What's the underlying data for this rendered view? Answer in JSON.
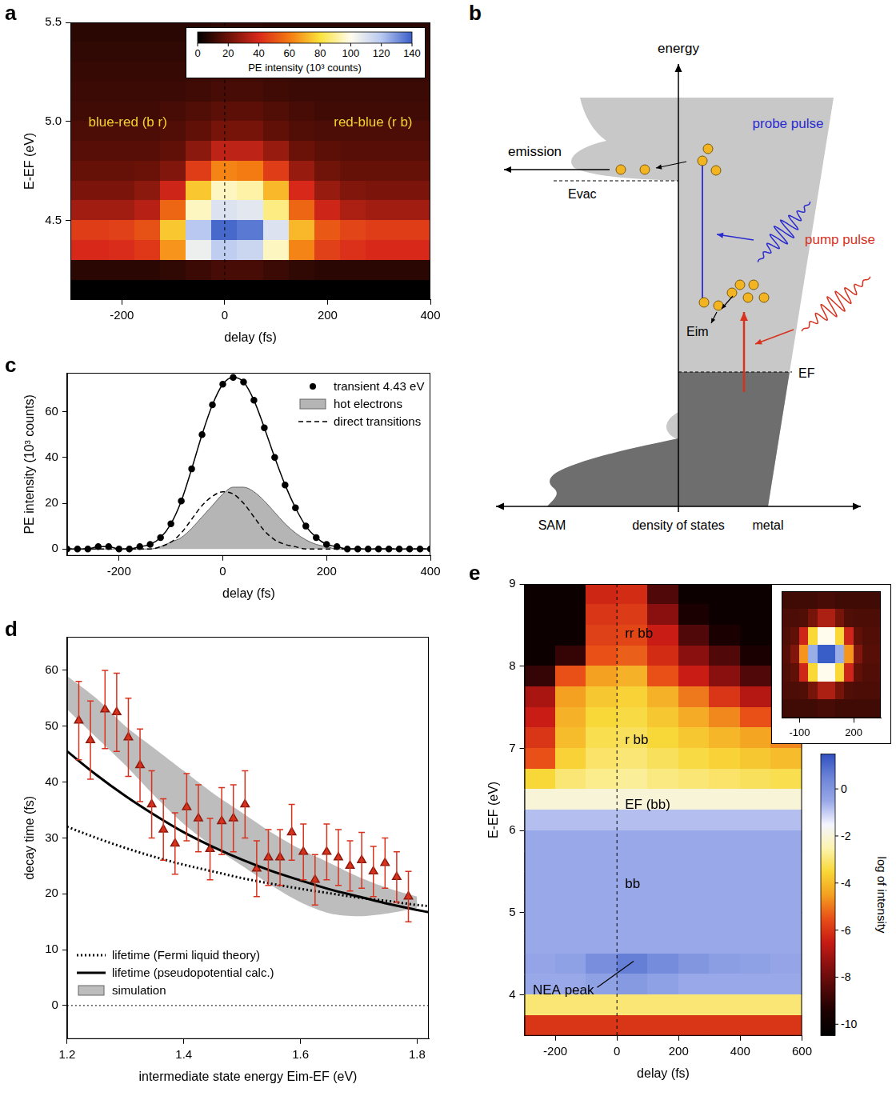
{
  "chart_data": [
    {
      "panel_label": "a",
      "type": "heatmap",
      "annotations": [
        "blue-red (b r)",
        "red-blue (r b)"
      ],
      "x_label": "delay (fs)",
      "y_label": "E-EF (eV)",
      "xlim": [
        -300,
        400
      ],
      "xticks": [
        -200,
        0,
        200,
        400
      ],
      "ylim": [
        4.1,
        5.5
      ],
      "yticks": [
        4.5,
        {
          "value": 5,
          "label": "5.0"
        },
        5.5
      ],
      "grid": false,
      "reference_line_x": 0,
      "x": [
        -300,
        -250,
        -200,
        -150,
        -100,
        -50,
        0,
        50,
        100,
        150,
        200,
        250,
        300,
        350,
        400
      ],
      "y": [
        5.45,
        5.35,
        5.25,
        5.15,
        5.05,
        4.95,
        4.85,
        4.75,
        4.65,
        4.55,
        4.45,
        4.35,
        4.25,
        4.15
      ],
      "z": [
        [
          8,
          8,
          8,
          8,
          8,
          8,
          9,
          9,
          8,
          8,
          8,
          8,
          8,
          8,
          8
        ],
        [
          9,
          9,
          9,
          9,
          9,
          9,
          10,
          10,
          9,
          9,
          9,
          9,
          9,
          9,
          9
        ],
        [
          10,
          10,
          10,
          10,
          10,
          11,
          12,
          12,
          11,
          10,
          10,
          10,
          10,
          10,
          10
        ],
        [
          11,
          11,
          11,
          11,
          11,
          12,
          13,
          13,
          12,
          11,
          11,
          11,
          11,
          11,
          11
        ],
        [
          12,
          12,
          12,
          12,
          13,
          15,
          17,
          17,
          15,
          13,
          12,
          12,
          12,
          12,
          12
        ],
        [
          14,
          14,
          14,
          14,
          15,
          18,
          22,
          22,
          18,
          15,
          14,
          14,
          14,
          14,
          14
        ],
        [
          16,
          16,
          16,
          16,
          18,
          26,
          35,
          35,
          28,
          20,
          17,
          16,
          16,
          16,
          16
        ],
        [
          19,
          19,
          19,
          20,
          24,
          45,
          62,
          60,
          45,
          28,
          21,
          19,
          19,
          19,
          19
        ],
        [
          23,
          23,
          23,
          26,
          38,
          75,
          95,
          92,
          72,
          40,
          28,
          24,
          23,
          23,
          23
        ],
        [
          30,
          30,
          30,
          34,
          55,
          95,
          110,
          108,
          88,
          55,
          38,
          32,
          30,
          30,
          30
        ],
        [
          45,
          45,
          46,
          50,
          75,
          120,
          138,
          135,
          110,
          72,
          52,
          47,
          45,
          45,
          45
        ],
        [
          40,
          40,
          41,
          44,
          65,
          105,
          118,
          115,
          95,
          62,
          46,
          42,
          40,
          40,
          40
        ],
        [
          8,
          8,
          8,
          8,
          9,
          11,
          13,
          13,
          11,
          9,
          8,
          8,
          8,
          8,
          8
        ],
        [
          0,
          0,
          0,
          0,
          0,
          0,
          0,
          0,
          0,
          0,
          0,
          0,
          0,
          0,
          0
        ]
      ],
      "colorbar": {
        "label": "PE intensity (10³ counts)",
        "range": [
          0,
          140
        ],
        "ticks": [
          0,
          20,
          40,
          60,
          80,
          100,
          120,
          140
        ],
        "colors": [
          "#000000",
          "#6b1208",
          "#d8281a",
          "#f47a12",
          "#fbe23a",
          "#fffcee",
          "#b8c8f0",
          "#3a5ec8"
        ]
      }
    },
    {
      "panel_label": "c",
      "type": "line",
      "x_label": "delay (fs)",
      "y_label": "PE intensity (10³ counts)",
      "xlim": [
        -300,
        400
      ],
      "xticks": [
        -200,
        0,
        200,
        400
      ],
      "ylim": [
        -3,
        77
      ],
      "yticks": [
        0,
        20,
        40,
        60
      ],
      "grid": false,
      "legend": "top-right",
      "x": [
        -300,
        -280,
        -260,
        -240,
        -220,
        -200,
        -180,
        -160,
        -140,
        -120,
        -100,
        -80,
        -60,
        -40,
        -20,
        0,
        20,
        40,
        60,
        80,
        100,
        120,
        140,
        160,
        180,
        200,
        220,
        240,
        260,
        280,
        300,
        320,
        340,
        360,
        380,
        400
      ],
      "series": [
        {
          "name": "transient 4.43 eV",
          "color": "#000000",
          "marker": "circle",
          "line_style": "solid",
          "values": [
            0,
            0,
            0,
            1,
            1,
            0,
            0,
            1,
            2,
            5,
            11,
            21,
            35,
            50,
            63,
            72,
            75,
            73,
            65,
            53,
            40,
            28,
            18,
            10,
            5,
            2,
            1,
            0,
            0,
            0,
            0,
            0,
            0,
            0,
            0,
            0
          ]
        },
        {
          "name": "hot electrons",
          "type": "area",
          "color": "#b5b5b5",
          "values": [
            0,
            0,
            0,
            0,
            0,
            0,
            0,
            0,
            0,
            1,
            3,
            5,
            9,
            14,
            19,
            24,
            27,
            27,
            25,
            21,
            16,
            11,
            7,
            4,
            2,
            1,
            0,
            0,
            0,
            0,
            0,
            0,
            0,
            0,
            0,
            0
          ]
        },
        {
          "name": "direct transitions",
          "color": "#000000",
          "line_style": "dashed",
          "values": [
            0,
            0,
            0,
            0,
            0,
            0,
            0,
            0,
            0,
            1,
            3,
            7,
            13,
            19,
            23,
            25,
            24,
            20,
            14,
            8,
            4,
            2,
            1,
            0,
            0,
            0,
            0,
            0,
            0,
            0,
            0,
            0,
            0,
            0,
            0,
            0
          ]
        }
      ]
    },
    {
      "panel_label": "d",
      "type": "line",
      "x_label": "intermediate state energy Eim-EF (eV)",
      "y_label": "decay time (fs)",
      "xlim": [
        1.2,
        1.82
      ],
      "xticks": [
        1.2,
        1.4,
        1.6,
        1.8
      ],
      "ylim": [
        -6,
        66
      ],
      "yticks": [
        0,
        10,
        20,
        30,
        40,
        50,
        60
      ],
      "grid": false,
      "legend": "bottom-left",
      "reference_line_y": 0,
      "series": [
        {
          "name": "lifetime (Fermi liquid theory)",
          "color": "#000000",
          "line_style": "dotted",
          "x": [
            1.2,
            1.25,
            1.3,
            1.35,
            1.4,
            1.45,
            1.5,
            1.55,
            1.6,
            1.65,
            1.7,
            1.75,
            1.8,
            1.82
          ],
          "values": [
            32,
            30,
            28.2,
            26.6,
            25.2,
            24,
            22.8,
            21.8,
            20.9,
            20.1,
            19.3,
            18.7,
            18,
            17.8
          ]
        },
        {
          "name": "lifetime (pseudopotential calc.)",
          "color": "#000000",
          "line_style": "solid",
          "x": [
            1.2,
            1.25,
            1.3,
            1.35,
            1.4,
            1.45,
            1.5,
            1.55,
            1.6,
            1.65,
            1.7,
            1.75,
            1.8,
            1.82
          ],
          "values": [
            45.5,
            41.3,
            37.5,
            34.1,
            31,
            28.4,
            26.1,
            24.1,
            22.4,
            20.8,
            19.5,
            18.2,
            17.1,
            16.7
          ]
        },
        {
          "name": "simulation",
          "type": "band",
          "color": "#bdbdbd",
          "x": [
            1.2,
            1.25,
            1.3,
            1.35,
            1.4,
            1.45,
            1.5,
            1.55,
            1.6,
            1.65,
            1.7,
            1.75,
            1.8
          ],
          "lower": [
            53,
            48,
            43,
            37.5,
            32.5,
            28.5,
            25,
            21.5,
            18.5,
            16.5,
            16,
            16.5,
            17.5
          ],
          "upper": [
            59,
            55,
            50,
            46,
            42,
            38,
            34.5,
            31,
            28,
            25.5,
            23,
            21,
            19.5
          ]
        },
        {
          "type": "scatter",
          "color": "#d8321e",
          "marker": "triangle",
          "x": [
            1.22,
            1.24,
            1.265,
            1.285,
            1.305,
            1.325,
            1.345,
            1.365,
            1.385,
            1.405,
            1.425,
            1.445,
            1.465,
            1.485,
            1.505,
            1.525,
            1.545,
            1.565,
            1.585,
            1.605,
            1.625,
            1.645,
            1.665,
            1.685,
            1.705,
            1.725,
            1.745,
            1.765,
            1.785
          ],
          "values": [
            51,
            47.5,
            53,
            52.5,
            48,
            43,
            36,
            31.5,
            29,
            35.5,
            33.5,
            28,
            33,
            33.5,
            36,
            24.5,
            26.5,
            26.5,
            31,
            27.5,
            22.5,
            27.5,
            26.5,
            25,
            26,
            24,
            25.5,
            23,
            19.5
          ],
          "errors": [
            7,
            7,
            7,
            7,
            7,
            6.5,
            6,
            5.5,
            5.5,
            6,
            6,
            5.5,
            6,
            6,
            6,
            5,
            5,
            5,
            5,
            5,
            4.5,
            5,
            5,
            4.5,
            5,
            4.5,
            4.5,
            4.5,
            4.5
          ]
        }
      ]
    },
    {
      "panel_label": "e",
      "type": "heatmap",
      "annotations": [
        "rr bb",
        "r bb",
        "EF (bb)",
        "bb",
        "NEA peak"
      ],
      "x_label": "delay (fs)",
      "y_label": "E-EF (eV)",
      "xlim": [
        -300,
        600
      ],
      "xticks": [
        -200,
        0,
        200,
        400,
        600
      ],
      "ylim": [
        3.5,
        9
      ],
      "yticks": [
        4,
        5,
        6,
        7,
        8,
        9
      ],
      "grid": false,
      "reference_line_x": 0,
      "x": [
        -250,
        -150,
        -50,
        50,
        150,
        250,
        350,
        450,
        550
      ],
      "y": [
        8.875,
        8.625,
        8.375,
        8.125,
        7.875,
        7.625,
        7.375,
        7.125,
        6.875,
        6.625,
        6.375,
        6.125,
        5.875,
        5.625,
        5.375,
        5.125,
        4.875,
        4.625,
        4.375,
        4.125,
        3.875,
        3.625
      ],
      "z": [
        [
          -10,
          -10,
          -6.3,
          -6.2,
          -8.5,
          -10,
          -10,
          -10,
          -10
        ],
        [
          -10,
          -10,
          -6,
          -5.9,
          -7.5,
          -9.5,
          -10,
          -10,
          -10
        ],
        [
          -10,
          -10,
          -5.8,
          -5.7,
          -6.5,
          -8.5,
          -9.5,
          -10,
          -10
        ],
        [
          -10,
          -9,
          -5.5,
          -5.3,
          -6.2,
          -7.5,
          -8.5,
          -9.5,
          -10
        ],
        [
          -9,
          -5.5,
          -4.5,
          -4.2,
          -5.5,
          -6.5,
          -7.5,
          -8.5,
          -9
        ],
        [
          -7,
          -4.5,
          -3.8,
          -3.6,
          -4.2,
          -5,
          -6,
          -6.8,
          -7.5
        ],
        [
          -6.5,
          -4.2,
          -3.5,
          -3.4,
          -3.8,
          -4.3,
          -4.8,
          -5.5,
          -6.2
        ],
        [
          -6,
          -4,
          -3.3,
          -3.2,
          -3.5,
          -3.8,
          -4.1,
          -4.4,
          -4.8
        ],
        [
          -5.5,
          -3.6,
          -3.1,
          -3,
          -3.2,
          -3.4,
          -3.6,
          -3.8,
          -4
        ],
        [
          -3.5,
          -3,
          -2.8,
          -2.7,
          -2.9,
          -3,
          -3.1,
          -3.2,
          -3.3
        ],
        [
          -2,
          -2,
          -2,
          -2,
          -2,
          -2,
          -2,
          -2,
          -2
        ],
        [
          -0.8,
          -0.8,
          -0.8,
          -0.8,
          -0.8,
          -0.8,
          -0.8,
          -0.8,
          -0.8
        ],
        [
          -0.5,
          -0.5,
          -0.5,
          -0.5,
          -0.5,
          -0.5,
          -0.5,
          -0.5,
          -0.5
        ],
        [
          -0.5,
          -0.5,
          -0.5,
          -0.5,
          -0.5,
          -0.5,
          -0.5,
          -0.5,
          -0.5
        ],
        [
          -0.5,
          -0.5,
          -0.5,
          -0.5,
          -0.5,
          -0.5,
          -0.5,
          -0.5,
          -0.5
        ],
        [
          -0.5,
          -0.5,
          -0.5,
          -0.5,
          -0.5,
          -0.5,
          -0.5,
          -0.5,
          -0.5
        ],
        [
          -0.5,
          -0.5,
          -0.5,
          -0.5,
          -0.5,
          -0.5,
          -0.5,
          -0.5,
          -0.5
        ],
        [
          -0.5,
          -0.5,
          -0.5,
          -0.5,
          -0.5,
          -0.5,
          -0.5,
          -0.5,
          -0.5
        ],
        [
          -0.4,
          -0.3,
          0.2,
          0.6,
          0.3,
          0,
          -0.2,
          -0.3,
          -0.4
        ],
        [
          -0.5,
          -0.5,
          -0.3,
          -0.1,
          -0.3,
          -0.5,
          -0.5,
          -0.5,
          -0.5
        ],
        [
          -3,
          -3,
          -3,
          -3,
          -3,
          -3,
          -3,
          -3,
          -3
        ],
        [
          -6,
          -6,
          -6,
          -6,
          -6,
          -6,
          -6,
          -6,
          -6
        ]
      ],
      "colorbar": {
        "label": "log of intensity",
        "range": [
          -10.5,
          1.5
        ],
        "ticks": [
          0,
          -2,
          -4,
          -6,
          -8,
          -10
        ],
        "colors": [
          "#000000",
          "#1a0000",
          "#500808",
          "#8a1010",
          "#c81c14",
          "#e85018",
          "#f4a020",
          "#f8d838",
          "#fcf4b0",
          "#f4f4ff",
          "#98a8e8",
          "#6c84d8",
          "#3050c0"
        ]
      },
      "inset": {
        "type": "heatmap",
        "tick_labels": "x",
        "xlim": [
          -200,
          350
        ],
        "xticks": [
          -100,
          200
        ],
        "x": [
          -175,
          -125,
          -75,
          -25,
          25,
          75,
          125,
          175,
          225,
          275,
          325
        ],
        "z": [
          [
            12,
            12,
            12,
            12,
            13,
            13,
            12,
            12,
            12,
            12,
            12
          ],
          [
            14,
            14,
            15,
            22,
            32,
            32,
            22,
            15,
            14,
            14,
            14
          ],
          [
            15,
            18,
            38,
            78,
            100,
            100,
            78,
            38,
            18,
            15,
            15
          ],
          [
            16,
            24,
            65,
            125,
            140,
            140,
            125,
            65,
            24,
            16,
            16
          ],
          [
            15,
            18,
            38,
            78,
            100,
            100,
            78,
            38,
            18,
            15,
            15
          ],
          [
            14,
            14,
            15,
            22,
            32,
            32,
            22,
            15,
            14,
            14,
            14
          ],
          [
            12,
            12,
            12,
            12,
            13,
            13,
            12,
            12,
            12,
            12,
            12
          ]
        ],
        "zlim": [
          0,
          140
        ],
        "colors": [
          "#000000",
          "#6b1208",
          "#d8281a",
          "#f47a12",
          "#fbe23a",
          "#fffcee",
          "#b8c8f0",
          "#3a5ec8"
        ]
      }
    }
  ],
  "diagram": {
    "panel_label": "b",
    "axis_label": "energy",
    "emission": "emission",
    "vacuum_level": "Evac",
    "probe": "probe pulse",
    "pump": "pump pulse",
    "intermediate_state": "Eim",
    "fermi_level": "EF",
    "dos_left": "SAM",
    "dos_axis": "density of states",
    "dos_right": "metal"
  }
}
